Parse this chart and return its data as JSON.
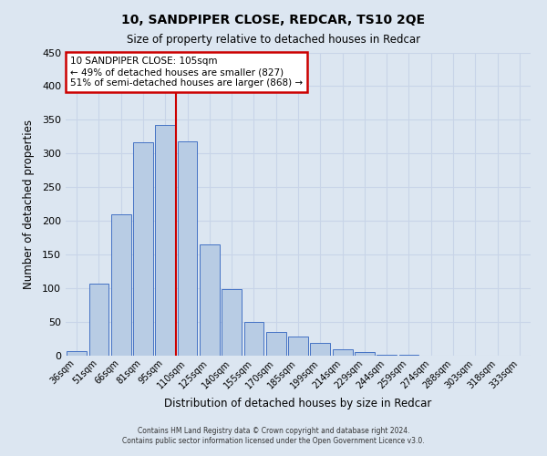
{
  "title": "10, SANDPIPER CLOSE, REDCAR, TS10 2QE",
  "subtitle": "Size of property relative to detached houses in Redcar",
  "xlabel": "Distribution of detached houses by size in Redcar",
  "ylabel": "Number of detached properties",
  "bar_labels": [
    "36sqm",
    "51sqm",
    "66sqm",
    "81sqm",
    "95sqm",
    "110sqm",
    "125sqm",
    "140sqm",
    "155sqm",
    "170sqm",
    "185sqm",
    "199sqm",
    "214sqm",
    "229sqm",
    "244sqm",
    "259sqm",
    "274sqm",
    "288sqm",
    "303sqm",
    "318sqm",
    "333sqm"
  ],
  "bar_values": [
    7,
    107,
    210,
    317,
    343,
    318,
    165,
    99,
    50,
    35,
    28,
    19,
    10,
    5,
    1,
    1,
    0,
    0,
    0,
    0,
    0
  ],
  "bar_color": "#b8cce4",
  "bar_edge_color": "#4472c4",
  "grid_color": "#c8d4e8",
  "background_color": "#dce6f1",
  "ylim": [
    0,
    450
  ],
  "yticks": [
    0,
    50,
    100,
    150,
    200,
    250,
    300,
    350,
    400,
    450
  ],
  "vline_x": 4.5,
  "vline_color": "#cc0000",
  "annotation_title": "10 SANDPIPER CLOSE: 105sqm",
  "annotation_line1": "← 49% of detached houses are smaller (827)",
  "annotation_line2": "51% of semi-detached houses are larger (868) →",
  "annotation_box_color": "#ffffff",
  "annotation_box_edge": "#cc0000",
  "footer1": "Contains HM Land Registry data © Crown copyright and database right 2024.",
  "footer2": "Contains public sector information licensed under the Open Government Licence v3.0."
}
